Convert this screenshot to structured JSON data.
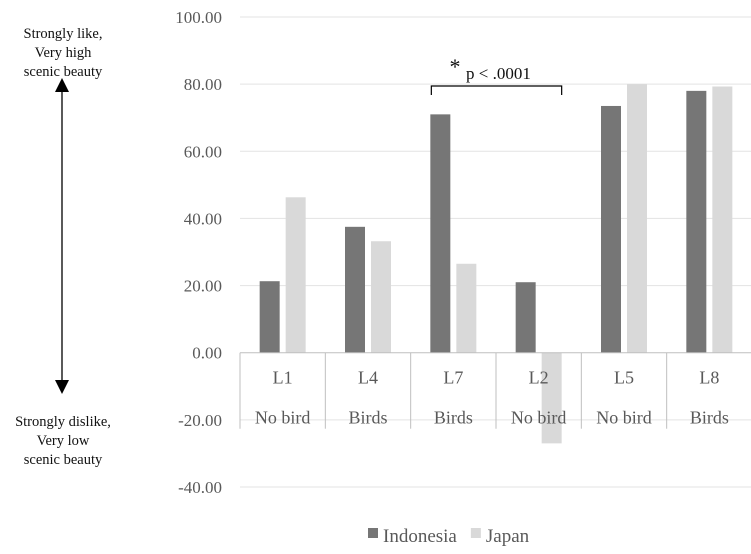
{
  "annotations": {
    "top": [
      "Strongly like,",
      "Very high",
      "scenic beauty"
    ],
    "bottom": [
      "Strongly dislike,",
      "Very low",
      "scenic beauty"
    ],
    "significance_star": "*",
    "significance_text": "p < .0001"
  },
  "chart_data": {
    "type": "bar",
    "categories": [
      "L1",
      "L4",
      "L7",
      "L2",
      "L5",
      "L8"
    ],
    "category_groups": [
      "No bird",
      "Birds",
      "Birds",
      "No bird",
      "No bird",
      "Birds"
    ],
    "series": [
      {
        "name": "Indonesia",
        "values": [
          21.3,
          37.5,
          71.0,
          21.0,
          73.5,
          78.0
        ],
        "color": "#767676"
      },
      {
        "name": "Japan",
        "values": [
          46.3,
          33.2,
          26.5,
          -27.0,
          80.0,
          79.3
        ],
        "color": "#d9d9d9"
      }
    ],
    "yticks": [
      "100.00",
      "80.00",
      "60.00",
      "40.00",
      "20.00",
      "0.00",
      "-20.00",
      "-40.00"
    ],
    "ylim": [
      -40,
      100
    ],
    "grid": true,
    "legend_position": "bottom",
    "axis_color": "#bfbfbf",
    "text_color": "#595959",
    "significance_span": [
      "L7",
      "L2"
    ]
  }
}
